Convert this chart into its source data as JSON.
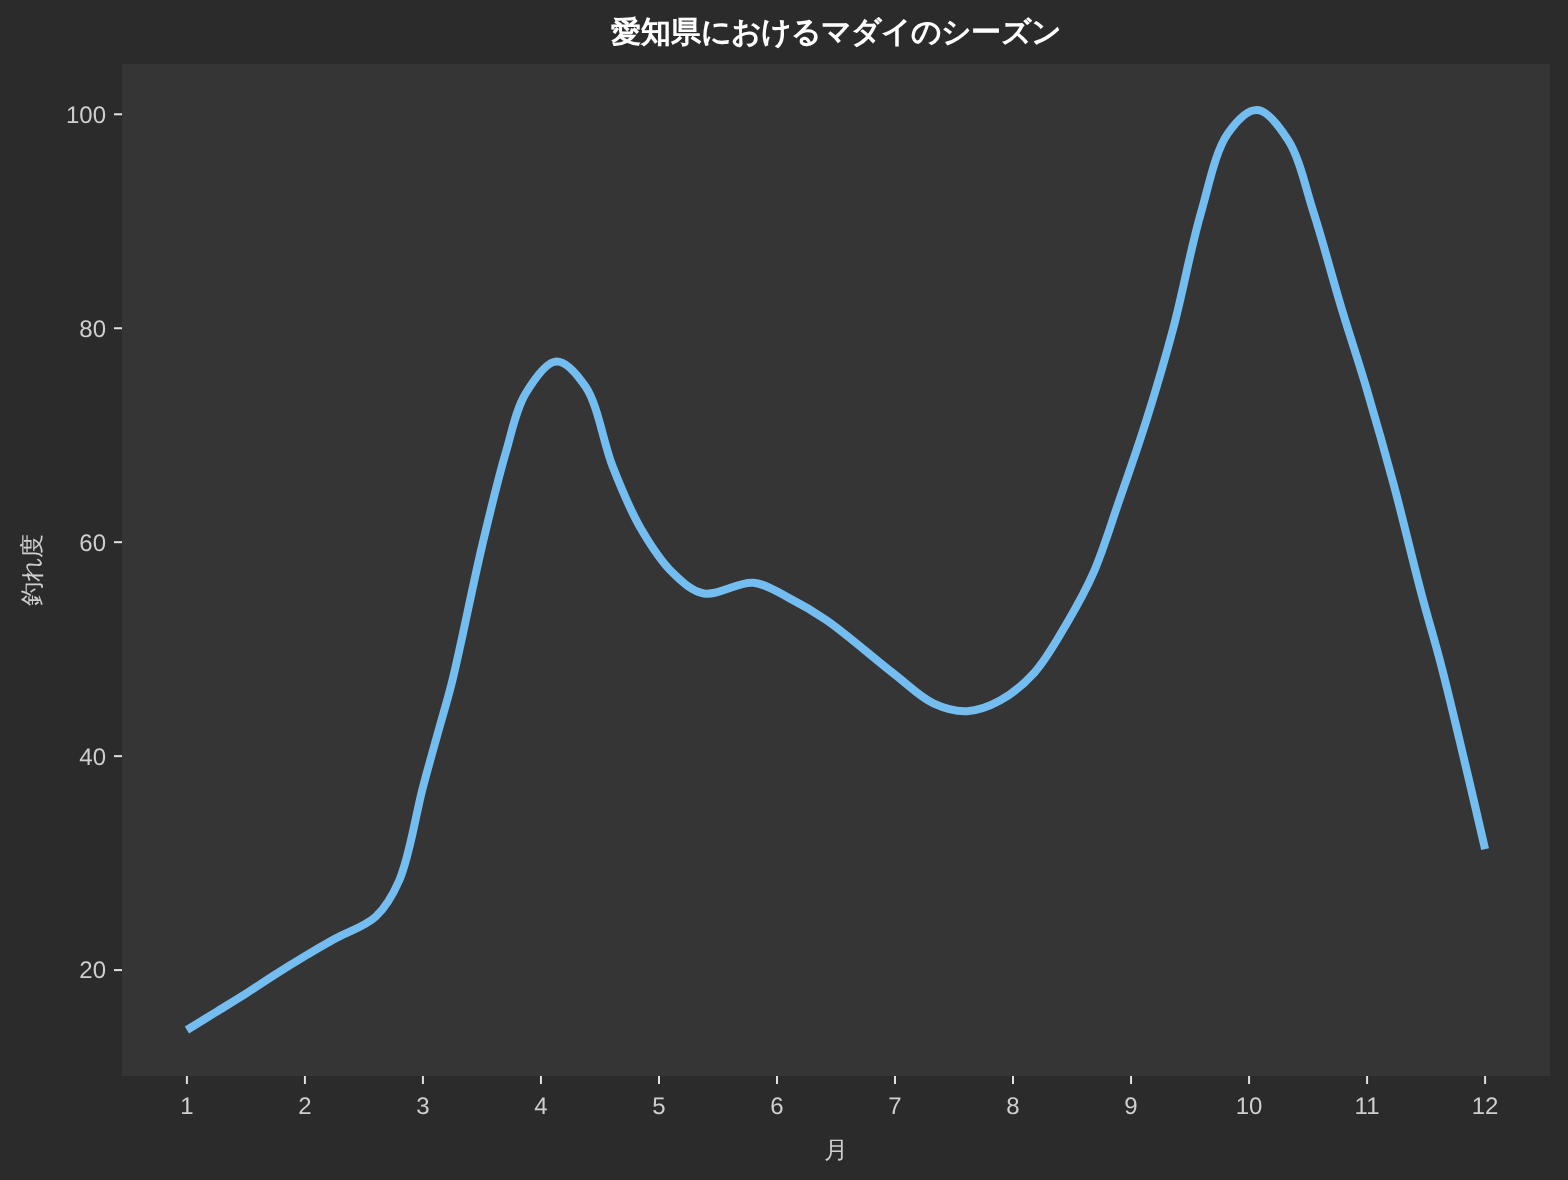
{
  "chart_data": {
    "type": "line",
    "title": "愛知県におけるマダイのシーズン",
    "xlabel": "月",
    "ylabel": "釣れ度",
    "x": [
      1.0,
      1.25,
      1.5,
      1.75,
      2.0,
      2.25,
      2.6,
      2.8,
      3.0,
      3.14,
      3.25,
      3.5,
      3.7,
      3.87,
      4.13,
      4.38,
      4.61,
      4.84,
      5.12,
      5.38,
      5.8,
      6.1,
      6.42,
      6.99,
      7.33,
      7.61,
      7.89,
      8.18,
      8.46,
      8.68,
      8.9,
      9.13,
      9.36,
      9.59,
      9.82,
      10.07,
      10.33,
      10.55,
      10.78,
      11.0,
      11.23,
      11.46,
      11.63,
      11.85,
      12.0
    ],
    "values": [
      14.4,
      16.1,
      17.8,
      19.6,
      21.3,
      22.9,
      25.0,
      28.4,
      37.1,
      42.7,
      47.1,
      59.6,
      68.3,
      73.9,
      76.9,
      74.5,
      67.0,
      61.4,
      57.1,
      55.2,
      56.2,
      54.8,
      52.7,
      47.7,
      44.9,
      44.2,
      45.2,
      47.8,
      52.5,
      57.1,
      63.9,
      71.4,
      80.1,
      90.7,
      98.2,
      100.4,
      97.6,
      90.7,
      82.0,
      74.2,
      65.2,
      55.2,
      48.4,
      38.4,
      31.3
    ],
    "color": "#74bdf0",
    "xlim": [
      0.45,
      12.55
    ],
    "ylim": [
      10.1,
      104.7
    ],
    "xticks": [
      1,
      2,
      3,
      4,
      5,
      6,
      7,
      8,
      9,
      10,
      11,
      12
    ],
    "yticks": [
      20,
      40,
      60,
      80,
      100
    ]
  }
}
